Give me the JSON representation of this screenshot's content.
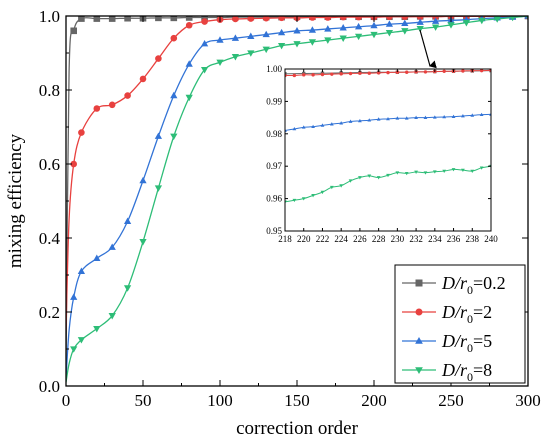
{
  "chart_data": {
    "type": "line",
    "title": "",
    "xlabel": "correction order",
    "ylabel": "mixing efficiency",
    "xlim": [
      0,
      300
    ],
    "ylim": [
      0,
      1.0
    ],
    "xticks": [
      0,
      50,
      100,
      150,
      200,
      250,
      300
    ],
    "yticks": [
      0.0,
      0.2,
      0.4,
      0.6,
      0.8,
      1.0
    ],
    "ytick_labels": [
      "0.0",
      "0.2",
      "0.4",
      "0.6",
      "0.8",
      "1.0"
    ],
    "legend_placement": "bottom-right",
    "grid": false,
    "series": [
      {
        "name": "D/r0=0.2",
        "legend_main": "D/r",
        "legend_sub": "0",
        "legend_value": "=0.2",
        "color": "#666666",
        "marker": "square",
        "x": [
          0,
          2,
          5,
          10,
          20,
          30,
          40,
          50,
          60,
          70,
          80,
          90,
          100,
          110,
          120,
          130,
          140,
          150,
          160,
          170,
          180,
          190,
          200,
          210,
          220,
          230,
          240,
          250,
          260,
          270,
          280,
          290,
          300
        ],
        "y": [
          0.05,
          0.85,
          0.96,
          0.993,
          0.993,
          0.993,
          0.994,
          0.994,
          0.995,
          0.995,
          0.996,
          0.996,
          0.996,
          0.997,
          0.997,
          0.997,
          0.997,
          0.998,
          0.998,
          0.998,
          0.998,
          0.998,
          0.998,
          0.998,
          0.998,
          0.999,
          0.999,
          0.999,
          0.999,
          0.999,
          0.999,
          0.999,
          1.0
        ]
      },
      {
        "name": "D/r0=2",
        "legend_main": "D/r",
        "legend_sub": "0",
        "legend_value": "=2",
        "color": "#e8413f",
        "marker": "circle",
        "x": [
          0,
          2,
          5,
          10,
          20,
          30,
          40,
          50,
          60,
          70,
          80,
          90,
          100,
          110,
          120,
          130,
          140,
          150,
          160,
          170,
          180,
          190,
          200,
          210,
          220,
          230,
          240,
          250,
          260,
          270,
          280,
          290,
          300
        ],
        "y": [
          0.15,
          0.45,
          0.6,
          0.685,
          0.75,
          0.76,
          0.785,
          0.83,
          0.885,
          0.94,
          0.975,
          0.985,
          0.99,
          0.992,
          0.993,
          0.994,
          0.995,
          0.995,
          0.996,
          0.996,
          0.997,
          0.997,
          0.997,
          0.998,
          0.998,
          0.998,
          0.998,
          0.999,
          0.999,
          0.999,
          0.999,
          0.999,
          1.0
        ]
      },
      {
        "name": "D/r0=5",
        "legend_main": "D/r",
        "legend_sub": "0",
        "legend_value": "=5",
        "color": "#3273d6",
        "marker": "triangle-up",
        "x": [
          0,
          2,
          5,
          10,
          20,
          30,
          40,
          50,
          60,
          70,
          80,
          90,
          100,
          110,
          120,
          130,
          140,
          150,
          160,
          170,
          180,
          190,
          200,
          210,
          220,
          230,
          240,
          250,
          260,
          270,
          280,
          290,
          300
        ],
        "y": [
          0.02,
          0.15,
          0.24,
          0.31,
          0.345,
          0.375,
          0.445,
          0.555,
          0.675,
          0.785,
          0.87,
          0.925,
          0.935,
          0.94,
          0.945,
          0.95,
          0.955,
          0.96,
          0.962,
          0.965,
          0.968,
          0.971,
          0.974,
          0.978,
          0.98,
          0.983,
          0.986,
          0.988,
          0.99,
          0.993,
          0.995,
          0.997,
          1.0
        ]
      },
      {
        "name": "D/r0=8",
        "legend_main": "D/r",
        "legend_sub": "0",
        "legend_value": "=8",
        "color": "#2dbd77",
        "marker": "triangle-down",
        "x": [
          0,
          2,
          5,
          10,
          20,
          30,
          40,
          50,
          60,
          70,
          80,
          90,
          100,
          110,
          120,
          130,
          140,
          150,
          160,
          170,
          180,
          190,
          200,
          210,
          220,
          230,
          240,
          250,
          260,
          270,
          280,
          290,
          300
        ],
        "y": [
          0.01,
          0.06,
          0.1,
          0.125,
          0.155,
          0.19,
          0.265,
          0.39,
          0.535,
          0.675,
          0.78,
          0.855,
          0.875,
          0.89,
          0.9,
          0.91,
          0.92,
          0.925,
          0.93,
          0.935,
          0.94,
          0.945,
          0.95,
          0.955,
          0.96,
          0.966,
          0.97,
          0.976,
          0.982,
          0.988,
          0.992,
          0.996,
          1.0
        ]
      }
    ],
    "inset": {
      "xlim": [
        218,
        240
      ],
      "ylim": [
        0.95,
        1.0
      ],
      "xticks": [
        218,
        220,
        222,
        224,
        226,
        228,
        230,
        232,
        234,
        236,
        238,
        240
      ],
      "yticks": [
        0.95,
        0.96,
        0.97,
        0.98,
        0.99,
        1.0
      ],
      "ytick_labels": [
        "0.95",
        "0.96",
        "0.97",
        "0.98",
        "0.99",
        "1.00"
      ],
      "series": [
        {
          "color": "#666666",
          "marker": "square",
          "x": [
            218,
            220,
            222,
            224,
            226,
            228,
            230,
            232,
            234,
            236,
            238,
            240
          ],
          "y": [
            0.9985,
            0.9986,
            0.9987,
            0.9988,
            0.9989,
            0.999,
            0.999,
            0.9991,
            0.9992,
            0.9993,
            0.9994,
            0.9995
          ]
        },
        {
          "color": "#e8413f",
          "marker": "circle",
          "x": [
            218,
            219,
            220,
            221,
            222,
            223,
            224,
            225,
            226,
            227,
            228,
            229,
            230,
            231,
            232,
            233,
            234,
            235,
            236,
            237,
            238,
            239,
            240
          ],
          "y": [
            0.998,
            0.998,
            0.9982,
            0.9982,
            0.9983,
            0.9984,
            0.9985,
            0.9986,
            0.9987,
            0.9987,
            0.9988,
            0.9989,
            0.999,
            0.999,
            0.9991,
            0.9991,
            0.9992,
            0.9993,
            0.9993,
            0.9994,
            0.9995,
            0.9995,
            0.9996
          ]
        },
        {
          "color": "#3273d6",
          "marker": "triangle-up",
          "x": [
            218,
            219,
            220,
            221,
            222,
            223,
            224,
            225,
            226,
            227,
            228,
            229,
            230,
            231,
            232,
            233,
            234,
            235,
            236,
            237,
            238,
            239,
            240
          ],
          "y": [
            0.981,
            0.9815,
            0.982,
            0.9822,
            0.9826,
            0.983,
            0.9833,
            0.9838,
            0.984,
            0.9842,
            0.9845,
            0.9846,
            0.9848,
            0.9848,
            0.985,
            0.985,
            0.9851,
            0.9852,
            0.9853,
            0.9855,
            0.9857,
            0.9859,
            0.986
          ]
        },
        {
          "color": "#2dbd77",
          "marker": "triangle-down",
          "x": [
            218,
            219,
            220,
            221,
            222,
            223,
            224,
            225,
            226,
            227,
            228,
            229,
            230,
            231,
            232,
            233,
            234,
            235,
            236,
            237,
            238,
            239,
            240
          ],
          "y": [
            0.959,
            0.9595,
            0.96,
            0.961,
            0.962,
            0.9635,
            0.964,
            0.9655,
            0.9665,
            0.967,
            0.9665,
            0.9672,
            0.968,
            0.9678,
            0.9682,
            0.968,
            0.9683,
            0.9685,
            0.969,
            0.9688,
            0.9685,
            0.9695,
            0.97
          ]
        }
      ]
    }
  }
}
